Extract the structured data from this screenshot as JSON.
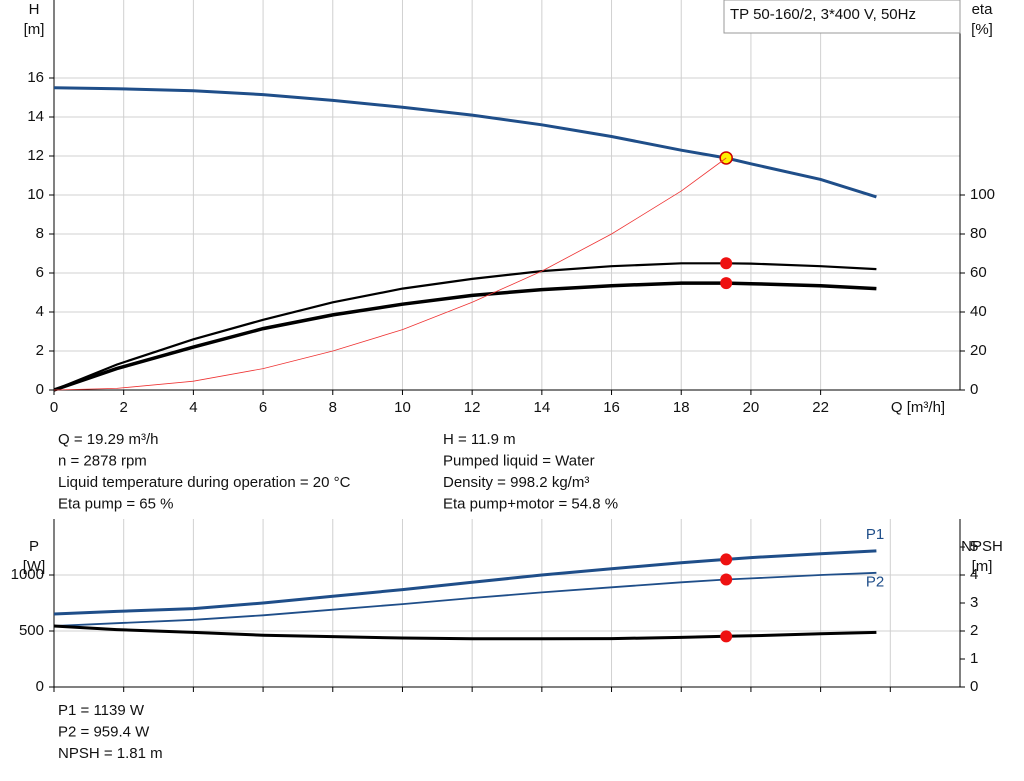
{
  "chart_data": [
    {
      "type": "line",
      "title": "TP 50-160/2, 3*400 V, 50Hz",
      "ylabel": "H",
      "yunit": "[m]",
      "y2label": "eta",
      "y2unit": "[%]",
      "xlabel": "Q [m³/h]",
      "x": [
        0,
        1.8,
        4,
        6,
        8,
        10,
        12,
        14,
        16,
        18,
        19.29,
        20,
        22,
        23.6
      ],
      "xlim": [
        0,
        26
      ],
      "xticks": [
        0,
        2,
        4,
        6,
        8,
        10,
        12,
        14,
        16,
        18,
        20,
        22
      ],
      "xtick_labels": true,
      "ylim": [
        0,
        20
      ],
      "yticks": [
        0,
        2,
        4,
        6,
        8,
        10,
        12,
        14,
        16
      ],
      "y2lim": [
        0,
        200
      ],
      "y2ticks": [
        0,
        20,
        40,
        60,
        80,
        100
      ],
      "grid": true,
      "series": [
        {
          "color": "#1f4e89",
          "width": 3,
          "axis": "y",
          "values": [
            15.5,
            15.45,
            15.35,
            15.15,
            14.85,
            14.5,
            14.1,
            13.6,
            13.0,
            12.3,
            11.9,
            11.6,
            10.8,
            9.9
          ],
          "marker": "#ffee00"
        },
        {
          "color": "#000000",
          "width": 2.2,
          "axis": "y2",
          "values": [
            0,
            13,
            26,
            36,
            45,
            52,
            57,
            61,
            63.5,
            65,
            65,
            64.8,
            63.5,
            62
          ],
          "marker": "#ee1111"
        },
        {
          "color": "#000000",
          "width": 3.5,
          "axis": "y2",
          "values": [
            0,
            11,
            22,
            31.5,
            38.5,
            44,
            48.5,
            51.5,
            53.5,
            54.8,
            54.8,
            54.5,
            53.5,
            52
          ],
          "marker": "#ee1111"
        },
        {
          "color": "#ee3333",
          "width": 0.8,
          "axis": "y",
          "values": [
            0,
            0.08,
            0.45,
            1.1,
            2.0,
            3.1,
            4.5,
            6.1,
            8.0,
            10.2,
            11.9,
            null,
            null,
            null
          ]
        }
      ]
    },
    {
      "type": "line",
      "ylabel": "P",
      "yunit": "[W]",
      "y2label": "NPSH",
      "y2unit": "[m]",
      "x": [
        0,
        1.8,
        4,
        6,
        8,
        10,
        12,
        14,
        16,
        18,
        19.29,
        20,
        22,
        23.6
      ],
      "xlim": [
        0,
        26
      ],
      "xticks": [
        0,
        2,
        4,
        6,
        8,
        10,
        12,
        14,
        16,
        18,
        20,
        22,
        24
      ],
      "xtick_labels": false,
      "ylim": [
        0,
        1500
      ],
      "yticks": [
        0,
        500,
        1000
      ],
      "y2lim": [
        0,
        6
      ],
      "y2ticks": [
        0,
        1,
        2,
        3,
        4,
        5
      ],
      "grid": true,
      "series": [
        {
          "name": "P1",
          "color": "#1f4e89",
          "width": 3,
          "axis": "y",
          "values": [
            652,
            675,
            700,
            750,
            810,
            870,
            935,
            1000,
            1055,
            1110,
            1139,
            1155,
            1190,
            1215
          ],
          "marker": "#ee1111"
        },
        {
          "name": "P2",
          "color": "#1f4e89",
          "width": 1.8,
          "axis": "y",
          "values": [
            545,
            570,
            600,
            640,
            690,
            740,
            795,
            845,
            890,
            935,
            959.4,
            970,
            1000,
            1020
          ],
          "marker": "#ee1111"
        },
        {
          "color": "#000000",
          "width": 3,
          "axis": "y2",
          "values": [
            2.18,
            2.05,
            1.95,
            1.85,
            1.8,
            1.75,
            1.72,
            1.72,
            1.73,
            1.77,
            1.81,
            1.83,
            1.9,
            1.95
          ],
          "marker": "#ee1111"
        }
      ]
    }
  ],
  "info": {
    "left": [
      "Q = 19.29 m³/h",
      "n = 2878 rpm",
      "Liquid temperature during operation = 20 °C",
      "Eta pump = 65 %"
    ],
    "right": [
      "H = 11.9 m",
      "Pumped liquid = Water",
      "Density = 998.2 kg/m³",
      "Eta pump+motor = 54.8 %"
    ],
    "bottom": [
      "P1 = 1139 W",
      "P2 = 959.4 W",
      "NPSH = 1.81 m"
    ]
  }
}
